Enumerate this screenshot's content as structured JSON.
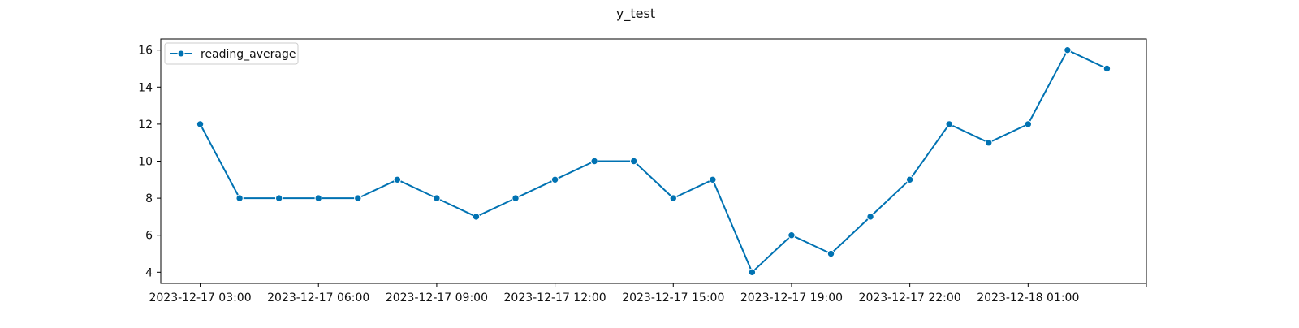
{
  "chart_data": {
    "type": "line",
    "title": "y_test",
    "xlabel": "",
    "ylabel": "",
    "series": [
      {
        "name": "reading_average",
        "color": "#0072b2",
        "marker": "circle",
        "x": [
          "2023-12-17 03:00",
          "2023-12-17 04:00",
          "2023-12-17 05:00",
          "2023-12-17 06:00",
          "2023-12-17 07:00",
          "2023-12-17 08:00",
          "2023-12-17 09:00",
          "2023-12-17 10:00",
          "2023-12-17 11:00",
          "2023-12-17 12:00",
          "2023-12-17 13:00",
          "2023-12-17 14:00",
          "2023-12-17 15:00",
          "2023-12-17 16:00",
          "2023-12-17 17:00",
          "2023-12-17 18:00",
          "2023-12-17 19:00",
          "2023-12-17 20:00",
          "2023-12-17 21:00",
          "2023-12-17 22:00",
          "2023-12-17 23:00",
          "2023-12-18 00:00",
          "2023-12-18 01:00",
          "2023-12-18 02:00"
        ],
        "values": [
          12,
          8,
          8,
          8,
          8,
          9,
          8,
          7,
          8,
          9,
          10,
          10,
          8,
          9,
          4,
          6,
          5,
          7,
          9,
          12,
          11,
          12,
          16,
          15
        ]
      }
    ],
    "x_ticks": [
      "2023-12-17 03:00",
      "2023-12-17 06:00",
      "2023-12-17 09:00",
      "2023-12-17 12:00",
      "2023-12-17 15:00",
      "2023-12-17 19:00",
      "2023-12-17 22:00",
      "2023-12-18 01:00",
      ""
    ],
    "y_ticks": [
      4,
      6,
      8,
      10,
      12,
      14,
      16
    ],
    "ylim": [
      3.4,
      16.6
    ],
    "xlim": [
      "2023-12-17 02:00",
      "2023-12-18 03:00"
    ],
    "grid": false,
    "legend_position": "upper left"
  }
}
